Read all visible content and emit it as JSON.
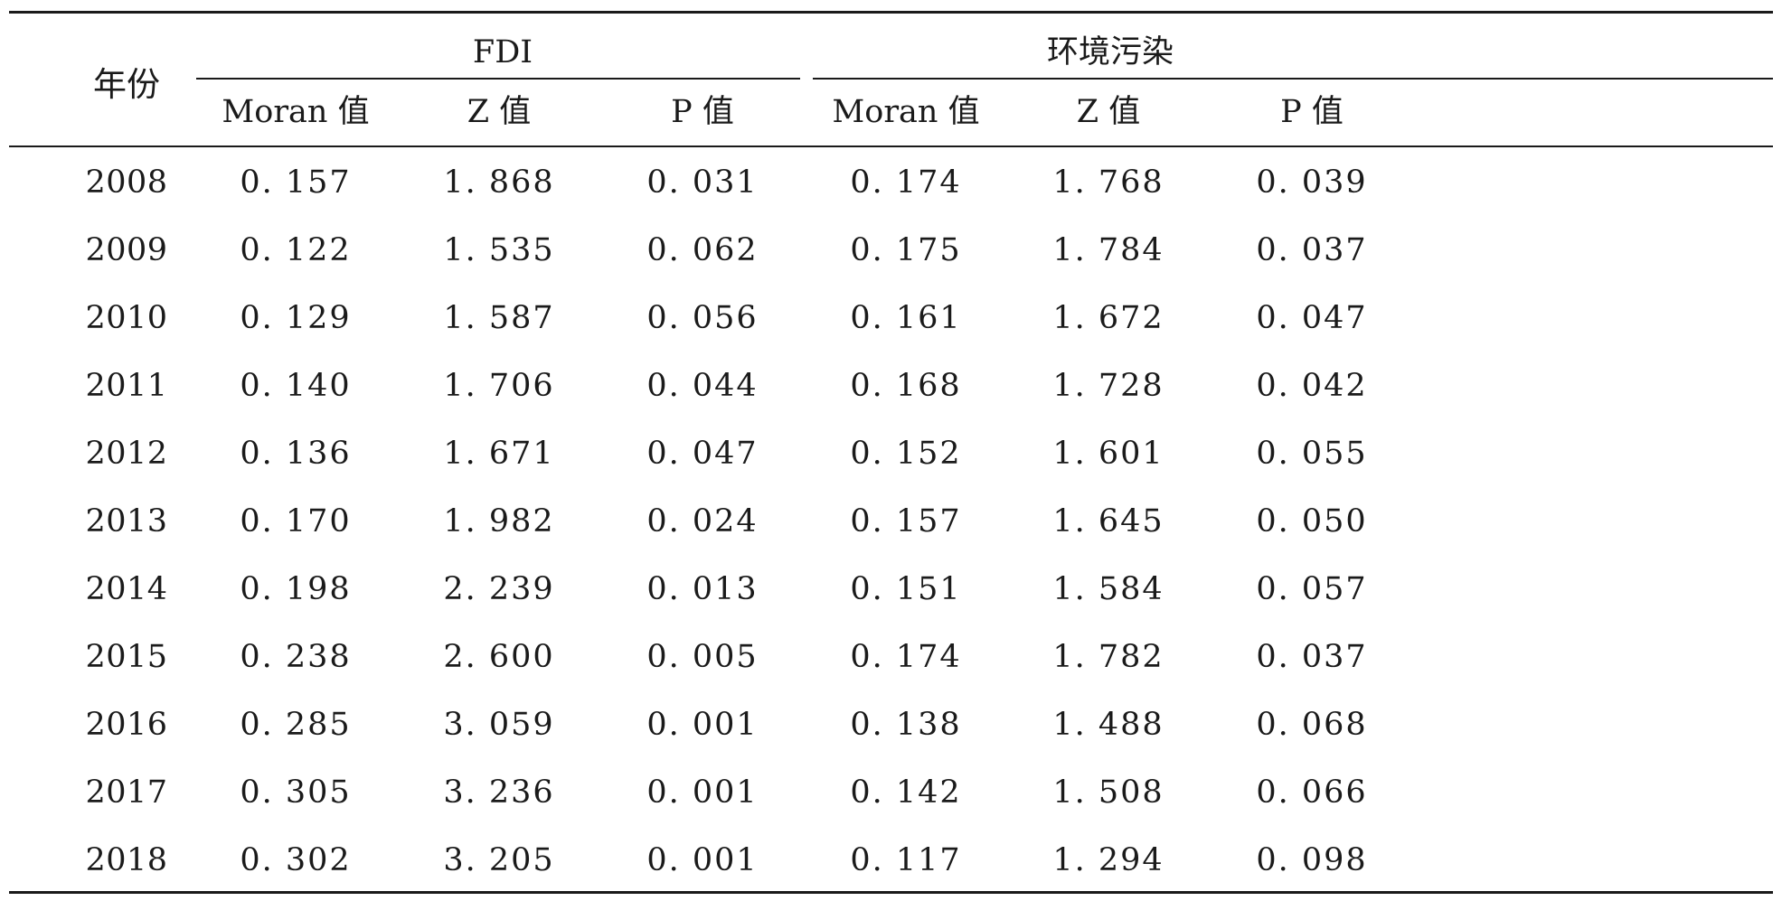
{
  "table": {
    "year_header": "年份",
    "groups": [
      {
        "label": "FDI"
      },
      {
        "label": "环境污染"
      }
    ],
    "subheaders": [
      "Moran 值",
      "Z 值",
      "P 值",
      "Moran 值",
      "Z 值",
      "P 值"
    ],
    "rows": [
      [
        "2008",
        "0. 157",
        "1. 868",
        "0. 031",
        "0. 174",
        "1. 768",
        "0. 039"
      ],
      [
        "2009",
        "0. 122",
        "1. 535",
        "0. 062",
        "0. 175",
        "1. 784",
        "0. 037"
      ],
      [
        "2010",
        "0. 129",
        "1. 587",
        "0. 056",
        "0. 161",
        "1. 672",
        "0. 047"
      ],
      [
        "2011",
        "0. 140",
        "1. 706",
        "0. 044",
        "0. 168",
        "1. 728",
        "0. 042"
      ],
      [
        "2012",
        "0. 136",
        "1. 671",
        "0. 047",
        "0. 152",
        "1. 601",
        "0. 055"
      ],
      [
        "2013",
        "0. 170",
        "1. 982",
        "0. 024",
        "0. 157",
        "1. 645",
        "0. 050"
      ],
      [
        "2014",
        "0. 198",
        "2. 239",
        "0. 013",
        "0. 151",
        "1. 584",
        "0. 057"
      ],
      [
        "2015",
        "0. 238",
        "2. 600",
        "0. 005",
        "0. 174",
        "1. 782",
        "0. 037"
      ],
      [
        "2016",
        "0. 285",
        "3. 059",
        "0. 001",
        "0. 138",
        "1. 488",
        "0. 068"
      ],
      [
        "2017",
        "0. 305",
        "3. 236",
        "0. 001",
        "0. 142",
        "1. 508",
        "0. 066"
      ],
      [
        "2018",
        "0. 302",
        "3. 205",
        "0. 001",
        "0. 117",
        "1. 294",
        "0. 098"
      ]
    ]
  }
}
